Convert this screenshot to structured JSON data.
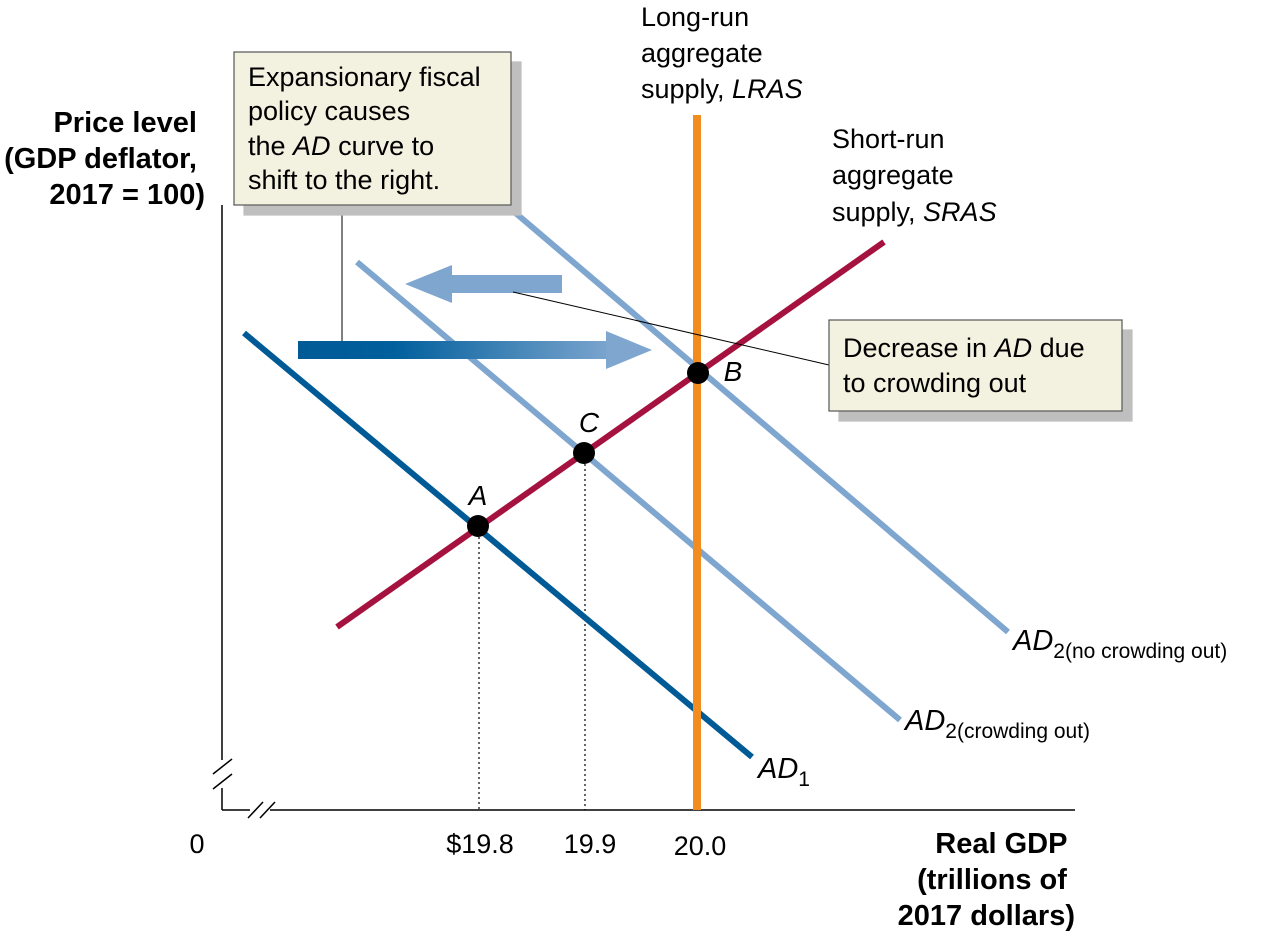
{
  "chart_data": {
    "type": "line",
    "ylabel": [
      "Price level",
      "(GDP deflator,",
      "2017 = 100)"
    ],
    "xlabel": [
      "Real GDP",
      "(trillions of",
      "2017 dollars)"
    ],
    "origin_label": "0",
    "x_ticks": [
      "$19.8",
      "19.9",
      "20.0"
    ],
    "curves": {
      "lras": {
        "label_lines": [
          "Long-run",
          "aggregate"
        ],
        "label_last_plain": "supply, ",
        "label_last_italic": "LRAS",
        "color": "#F28C1E"
      },
      "sras": {
        "label_lines": [
          "Short-run",
          "aggregate"
        ],
        "label_last_plain": "supply, ",
        "label_last_italic": "SRAS",
        "color": "#A6123F"
      },
      "ad1": {
        "name": "AD",
        "sub": "1",
        "color": "#005A96"
      },
      "ad2_crowding": {
        "name": "AD",
        "sub": "2(crowding out)",
        "color": "#7EA6CF"
      },
      "ad2_no_crowding": {
        "name": "AD",
        "sub": "2(no crowding out)",
        "color": "#7EA6CF"
      }
    },
    "points": [
      {
        "label": "A",
        "x": "$19.8"
      },
      {
        "label": "C",
        "x": "19.9"
      },
      {
        "label": "B",
        "x": "20.0"
      }
    ],
    "annotations": {
      "fiscal": {
        "lines": [
          {
            "text": "Expansionary fiscal"
          },
          {
            "text": "policy causes"
          },
          {
            "pre": "the ",
            "italic": "AD",
            "post": " curve to"
          },
          {
            "text": "shift to the right."
          }
        ]
      },
      "crowding": {
        "lines": [
          {
            "pre": "Decrease in ",
            "italic": "AD",
            "post": " due"
          },
          {
            "text": "to crowding out"
          }
        ]
      }
    }
  }
}
